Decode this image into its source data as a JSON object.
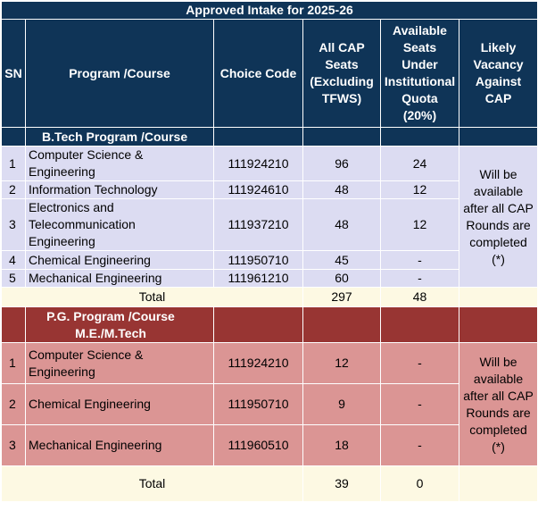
{
  "title": "Approved Intake for 2025-26",
  "headers": {
    "sn": "SN",
    "program": "Program /Course",
    "choice_code": "Choice Code",
    "cap_seats": "All CAP Seats (Excluding TFWS)",
    "inst_quota": "Available Seats Under Institutional Quota (20%)",
    "vacancy": "Likely Vacancy Against CAP"
  },
  "btech": {
    "section_label": "B.Tech Program /Course",
    "rows": [
      {
        "sn": "1",
        "program": "Computer Science & Engineering",
        "code": "111924210",
        "cap": "96",
        "inst": "24"
      },
      {
        "sn": "2",
        "program": "Information Technology",
        "code": "111924610",
        "cap": "48",
        "inst": "12"
      },
      {
        "sn": "3",
        "program": "Electronics and Telecommunication Engineering",
        "code": "111937210",
        "cap": "48",
        "inst": "12"
      },
      {
        "sn": "4",
        "program": "Chemical Engineering",
        "code": "111950710",
        "cap": "45",
        "inst": "-"
      },
      {
        "sn": "5",
        "program": "Mechanical Engineering",
        "code": "111961210",
        "cap": "60",
        "inst": "-"
      }
    ],
    "vacancy_note": "Will be available after all CAP Rounds are completed (*)",
    "total_label": "Total",
    "total_cap": "297",
    "total_inst": "48"
  },
  "pg": {
    "section_label": "P.G. Program /Course M.E./M.Tech",
    "rows": [
      {
        "sn": "1",
        "program": "Computer Science & Engineering",
        "code": "111924210",
        "cap": "12",
        "inst": "-"
      },
      {
        "sn": "2",
        "program": "Chemical Engineering",
        "code": "111950710",
        "cap": "9",
        "inst": "-"
      },
      {
        "sn": "3",
        "program": "Mechanical Engineering",
        "code": "111960510",
        "cap": "18",
        "inst": "-"
      }
    ],
    "vacancy_note": "Will be available after all CAP Rounds are completed (*)",
    "total_label": "Total",
    "total_cap": "39",
    "total_inst": "0"
  }
}
